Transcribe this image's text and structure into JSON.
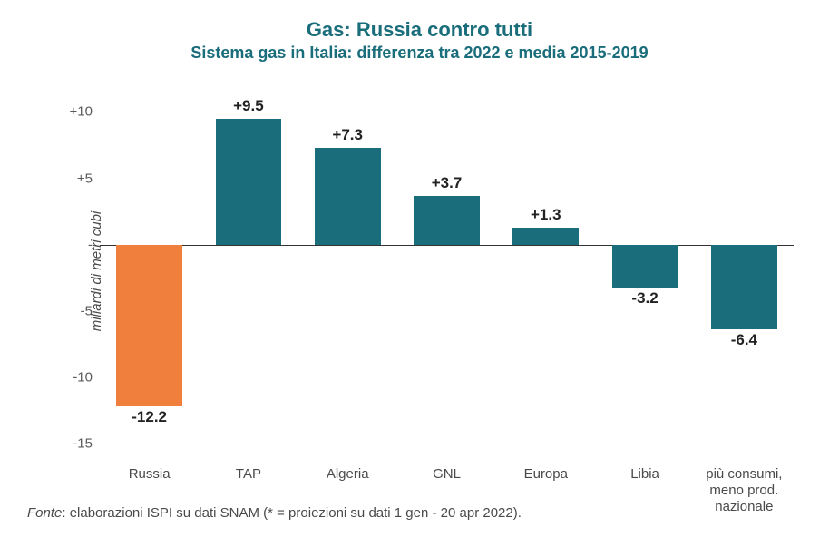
{
  "chart": {
    "type": "bar",
    "title": "Gas: Russia contro tutti",
    "subtitle": "Sistema gas in Italia: differenza tra 2022 e media 2015-2019",
    "title_fontsize": 22,
    "subtitle_fontsize": 18,
    "title_color": "#1a6d7a",
    "ylabel": "miliardi di metri cubi",
    "ylabel_fontsize": 15,
    "ylim_min": -16,
    "ylim_max": 12,
    "yticks": [
      {
        "value": 10,
        "label": "+10"
      },
      {
        "value": 5,
        "label": "+5"
      },
      {
        "value": 0,
        "label": "-"
      },
      {
        "value": -5,
        "label": "-5"
      },
      {
        "value": -10,
        "label": "-10"
      },
      {
        "value": -15,
        "label": "-15"
      }
    ],
    "categories": [
      "Russia",
      "TAP",
      "Algeria",
      "GNL",
      "Europa",
      "Libia",
      "più consumi,\nmeno prod.\nnazionale"
    ],
    "values": [
      -12.2,
      9.5,
      7.3,
      3.7,
      1.3,
      -3.2,
      -6.4
    ],
    "value_labels": [
      "-12.2",
      "+9.5",
      "+7.3",
      "+3.7",
      "+1.3",
      "-3.2",
      "-6.4"
    ],
    "bar_colors": [
      "#f07e3c",
      "#1a6d7a",
      "#1a6d7a",
      "#1a6d7a",
      "#1a6d7a",
      "#1a6d7a",
      "#1a6d7a"
    ],
    "bar_width_pct": 9.5,
    "bar_gap_pct": 14.28,
    "background_color": "#ffffff",
    "zero_line_color": "#333333",
    "label_fontsize": 17,
    "xlabel_fontsize": 15,
    "tick_color": "#5a5a5a"
  },
  "source": {
    "prefix": "Fonte",
    "text": ": elaborazioni ISPI su dati SNAM (* = proiezioni su dati 1 gen - 20 apr 2022).",
    "fontsize": 15,
    "color": "#4a4a4a"
  }
}
